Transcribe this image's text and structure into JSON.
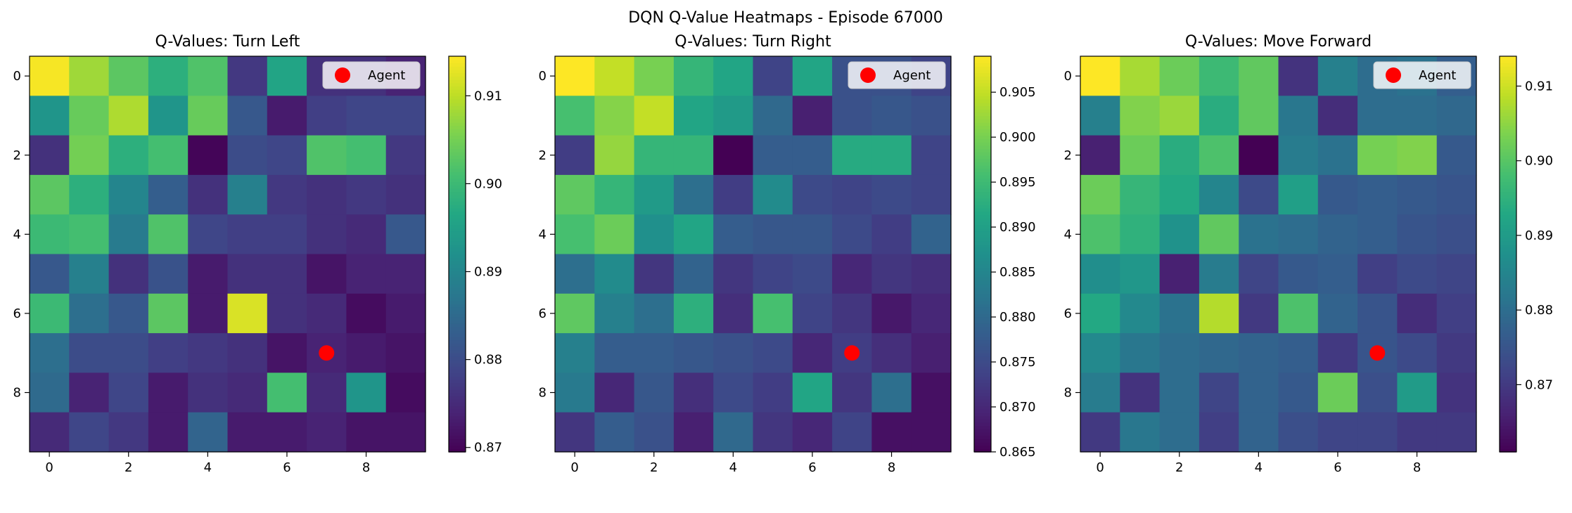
{
  "figure": {
    "title": "DQN Q-Value Heatmaps - Episode 67000"
  },
  "chart_data": [
    {
      "type": "heatmap",
      "title": "Q-Values: Turn Left",
      "xlabel": "",
      "ylabel": "",
      "x_ticks": [
        0,
        2,
        4,
        6,
        8
      ],
      "y_ticks": [
        0,
        2,
        4,
        6,
        8
      ],
      "xlim": [
        -0.5,
        9.5
      ],
      "ylim": [
        9.5,
        -0.5
      ],
      "colormap": "viridis",
      "vmin": 0.8695,
      "vmax": 0.9145,
      "colorbar_ticks": [
        "0.87",
        "0.88",
        "0.89",
        "0.90",
        "0.91"
      ],
      "colorbar_tick_values": [
        0.87,
        0.88,
        0.89,
        0.9,
        0.91
      ],
      "agent": {
        "x": 7,
        "y": 7,
        "label": "Agent",
        "color": "#ff0000"
      },
      "legend_position": "top-right",
      "values": [
        [
          0.914,
          0.908,
          0.903,
          0.898,
          0.902,
          0.877,
          0.896,
          0.876,
          0.876,
          0.874
        ],
        [
          0.893,
          0.904,
          0.909,
          0.893,
          0.904,
          0.882,
          0.873,
          0.878,
          0.879,
          0.879
        ],
        [
          0.876,
          0.905,
          0.898,
          0.901,
          0.87,
          0.88,
          0.879,
          0.902,
          0.901,
          0.877
        ],
        [
          0.903,
          0.898,
          0.89,
          0.883,
          0.876,
          0.889,
          0.877,
          0.876,
          0.877,
          0.876
        ],
        [
          0.9,
          0.901,
          0.888,
          0.902,
          0.879,
          0.878,
          0.878,
          0.876,
          0.875,
          0.882
        ],
        [
          0.882,
          0.889,
          0.876,
          0.881,
          0.873,
          0.876,
          0.876,
          0.872,
          0.874,
          0.874
        ],
        [
          0.9,
          0.886,
          0.882,
          0.903,
          0.873,
          0.912,
          0.876,
          0.875,
          0.871,
          0.873
        ],
        [
          0.886,
          0.88,
          0.88,
          0.878,
          0.877,
          0.876,
          0.872,
          0.874,
          0.873,
          0.872
        ],
        [
          0.885,
          0.874,
          0.879,
          0.873,
          0.876,
          0.875,
          0.901,
          0.875,
          0.893,
          0.871
        ],
        [
          0.875,
          0.879,
          0.877,
          0.873,
          0.884,
          0.873,
          0.873,
          0.874,
          0.872,
          0.872
        ]
      ]
    },
    {
      "type": "heatmap",
      "title": "Q-Values: Turn Right",
      "xlabel": "",
      "ylabel": "",
      "x_ticks": [
        0,
        2,
        4,
        6,
        8
      ],
      "y_ticks": [
        0,
        2,
        4,
        6,
        8
      ],
      "xlim": [
        -0.5,
        9.5
      ],
      "ylim": [
        9.5,
        -0.5
      ],
      "colormap": "viridis",
      "vmin": 0.865,
      "vmax": 0.909,
      "colorbar_ticks": [
        "0.865",
        "0.870",
        "0.875",
        "0.880",
        "0.885",
        "0.890",
        "0.895",
        "0.900",
        "0.905"
      ],
      "colorbar_tick_values": [
        0.865,
        0.87,
        0.875,
        0.88,
        0.885,
        0.89,
        0.895,
        0.9,
        0.905
      ],
      "agent": {
        "x": 7,
        "y": 7,
        "label": "Agent",
        "color": "#ff0000"
      },
      "legend_position": "top-right",
      "values": [
        [
          0.909,
          0.905,
          0.9,
          0.894,
          0.891,
          0.874,
          0.891,
          0.876,
          0.876,
          0.874
        ],
        [
          0.896,
          0.901,
          0.905,
          0.891,
          0.889,
          0.88,
          0.869,
          0.876,
          0.877,
          0.876
        ],
        [
          0.873,
          0.902,
          0.894,
          0.894,
          0.865,
          0.878,
          0.878,
          0.892,
          0.892,
          0.874
        ],
        [
          0.898,
          0.894,
          0.889,
          0.881,
          0.873,
          0.886,
          0.875,
          0.874,
          0.875,
          0.874
        ],
        [
          0.896,
          0.899,
          0.887,
          0.891,
          0.878,
          0.877,
          0.877,
          0.875,
          0.873,
          0.879
        ],
        [
          0.881,
          0.886,
          0.872,
          0.879,
          0.872,
          0.874,
          0.875,
          0.87,
          0.872,
          0.871
        ],
        [
          0.898,
          0.884,
          0.881,
          0.893,
          0.871,
          0.896,
          0.874,
          0.872,
          0.868,
          0.87
        ],
        [
          0.884,
          0.878,
          0.878,
          0.877,
          0.876,
          0.875,
          0.87,
          0.873,
          0.871,
          0.869
        ],
        [
          0.883,
          0.87,
          0.877,
          0.871,
          0.875,
          0.873,
          0.891,
          0.872,
          0.881,
          0.867
        ],
        [
          0.872,
          0.878,
          0.876,
          0.869,
          0.88,
          0.872,
          0.87,
          0.874,
          0.867,
          0.867
        ]
      ]
    },
    {
      "type": "heatmap",
      "title": "Q-Values: Move Forward",
      "xlabel": "",
      "ylabel": "",
      "x_ticks": [
        0,
        2,
        4,
        6,
        8
      ],
      "y_ticks": [
        0,
        2,
        4,
        6,
        8
      ],
      "xlim": [
        -0.5,
        9.5
      ],
      "ylim": [
        9.5,
        -0.5
      ],
      "colormap": "viridis",
      "vmin": 0.861,
      "vmax": 0.914,
      "colorbar_ticks": [
        "0.87",
        "0.88",
        "0.89",
        "0.90",
        "0.91"
      ],
      "colorbar_tick_values": [
        0.87,
        0.88,
        0.89,
        0.9,
        0.91
      ],
      "agent": {
        "x": 7,
        "y": 7,
        "label": "Agent",
        "color": "#ff0000"
      },
      "legend_position": "top-right",
      "values": [
        [
          0.914,
          0.907,
          0.902,
          0.897,
          0.901,
          0.869,
          0.884,
          0.88,
          0.881,
          0.877
        ],
        [
          0.884,
          0.904,
          0.906,
          0.894,
          0.901,
          0.882,
          0.868,
          0.88,
          0.88,
          0.879
        ],
        [
          0.866,
          0.902,
          0.894,
          0.899,
          0.861,
          0.883,
          0.881,
          0.903,
          0.904,
          0.876
        ],
        [
          0.902,
          0.896,
          0.893,
          0.885,
          0.873,
          0.891,
          0.876,
          0.877,
          0.876,
          0.875
        ],
        [
          0.899,
          0.895,
          0.888,
          0.901,
          0.881,
          0.88,
          0.878,
          0.877,
          0.875,
          0.874
        ],
        [
          0.887,
          0.889,
          0.866,
          0.883,
          0.872,
          0.876,
          0.877,
          0.871,
          0.873,
          0.872
        ],
        [
          0.893,
          0.886,
          0.881,
          0.908,
          0.87,
          0.899,
          0.878,
          0.875,
          0.868,
          0.871
        ],
        [
          0.886,
          0.882,
          0.88,
          0.879,
          0.878,
          0.877,
          0.87,
          0.875,
          0.873,
          0.87
        ],
        [
          0.883,
          0.869,
          0.88,
          0.872,
          0.878,
          0.876,
          0.902,
          0.874,
          0.89,
          0.869
        ],
        [
          0.87,
          0.882,
          0.88,
          0.871,
          0.878,
          0.874,
          0.872,
          0.872,
          0.87,
          0.87
        ]
      ]
    }
  ]
}
